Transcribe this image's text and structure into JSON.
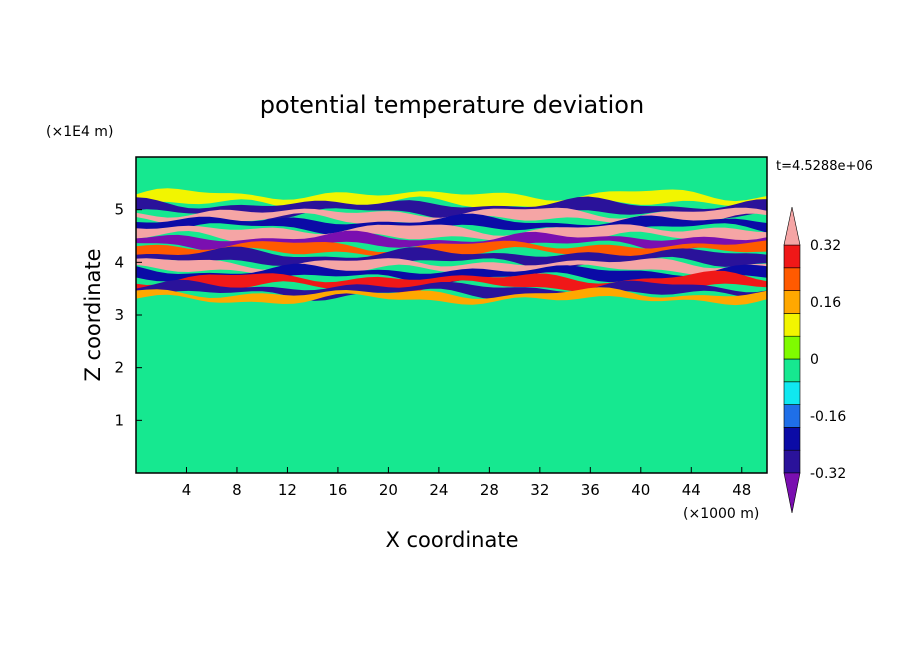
{
  "chart_data": {
    "type": "heatmap",
    "title": "potential temperature deviation",
    "xlabel": "X coordinate",
    "ylabel": "Z coordinate",
    "x_unit_label": "(×1000 m)",
    "y_unit_label": "(×1E4 m)",
    "time_label": "t=4.5288e+06",
    "xlim": [
      0,
      50
    ],
    "ylim": [
      0,
      6
    ],
    "x_ticks": [
      "4",
      "8",
      "12",
      "16",
      "20",
      "24",
      "28",
      "32",
      "36",
      "40",
      "44",
      "48"
    ],
    "x_tick_values": [
      4,
      8,
      12,
      16,
      20,
      24,
      28,
      32,
      36,
      40,
      44,
      48
    ],
    "y_ticks": [
      "1",
      "2",
      "3",
      "4",
      "5"
    ],
    "y_tick_values": [
      1,
      2,
      3,
      4,
      5
    ],
    "colorbar": {
      "levels": [
        -0.4,
        -0.32,
        -0.24,
        -0.16,
        -0.08,
        0,
        0.08,
        0.16,
        0.24,
        0.32,
        0.4
      ],
      "labels": [
        "0.32",
        "0.16",
        "0",
        "-0.16",
        "-0.32"
      ],
      "label_values": [
        0.32,
        0.16,
        0,
        -0.16,
        -0.32
      ],
      "colors_low_to_high": [
        "#7a0fb0",
        "#2a129a",
        "#0b0ba6",
        "#1f6fe8",
        "#10e8f0",
        "#16e890",
        "#7ffb00",
        "#f2f500",
        "#ffa800",
        "#ff5a00",
        "#f01818",
        "#f5a5a5"
      ],
      "extend": "both"
    },
    "bands": [
      {
        "z": 5.2,
        "thickness": 0.12,
        "value": 0.1
      },
      {
        "z": 5.02,
        "thickness": 0.12,
        "value": -0.38
      },
      {
        "z": 4.88,
        "thickness": 0.1,
        "value": 0.42
      },
      {
        "z": 4.72,
        "thickness": 0.1,
        "value": -0.3
      },
      {
        "z": 4.55,
        "thickness": 0.12,
        "value": 0.4
      },
      {
        "z": 4.4,
        "thickness": 0.1,
        "value": -0.42
      },
      {
        "z": 4.25,
        "thickness": 0.1,
        "value": 0.3
      },
      {
        "z": 4.08,
        "thickness": 0.12,
        "value": -0.4
      },
      {
        "z": 3.92,
        "thickness": 0.1,
        "value": 0.42
      },
      {
        "z": 3.78,
        "thickness": 0.1,
        "value": -0.32
      },
      {
        "z": 3.62,
        "thickness": 0.12,
        "value": 0.38
      },
      {
        "z": 3.47,
        "thickness": 0.1,
        "value": -0.36
      },
      {
        "z": 3.35,
        "thickness": 0.08,
        "value": 0.2
      }
    ]
  }
}
